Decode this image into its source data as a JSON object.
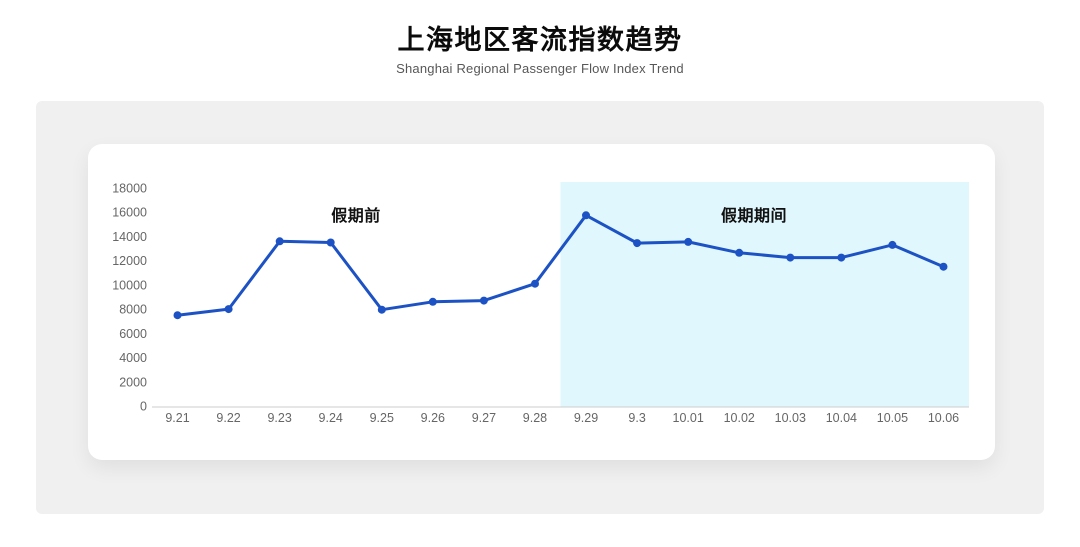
{
  "page": {
    "title": "上海地区客流指数趋势",
    "subtitle": "Shanghai Regional Passenger Flow Index Trend"
  },
  "chart_data": {
    "type": "line",
    "title": "上海地区客流指数趋势",
    "subtitle": "Shanghai Regional Passenger Flow Index Trend",
    "categories": [
      "9.21",
      "9.22",
      "9.23",
      "9.24",
      "9.25",
      "9.26",
      "9.27",
      "9.28",
      "9.29",
      "9.3",
      "10.01",
      "10.02",
      "10.03",
      "10.04",
      "10.05",
      "10.06"
    ],
    "values": [
      7500,
      8000,
      13600,
      13500,
      7950,
      8600,
      8700,
      10100,
      15750,
      13450,
      13550,
      12650,
      12250,
      12250,
      13300,
      11500
    ],
    "y_ticks": [
      0,
      2000,
      4000,
      6000,
      8000,
      10000,
      12000,
      14000,
      16000,
      18000
    ],
    "ylim": [
      0,
      18000
    ],
    "xlabel": "",
    "ylabel": "",
    "grid": false,
    "legend": false,
    "annotations": [
      {
        "label": "假期前",
        "region": "before-holiday"
      },
      {
        "label": "假期期间",
        "region": "holiday"
      }
    ],
    "highlight_region": {
      "from": "9.29",
      "to": "10.06",
      "color": "#e0f7fd"
    },
    "line_color": "#1d52c4",
    "axis_line_color": "#cccccc",
    "tick_label_color": "#666666"
  }
}
